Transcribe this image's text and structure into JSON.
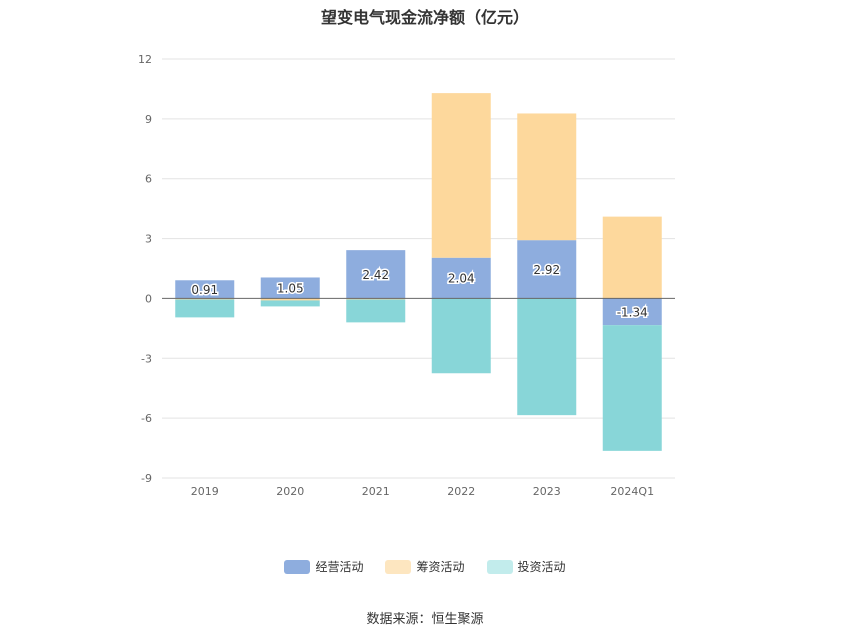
{
  "chart_data": {
    "type": "bar",
    "stacked": true,
    "title": "望变电气现金流净额（亿元）",
    "categories": [
      "2019",
      "2020",
      "2021",
      "2022",
      "2023",
      "2024Q1"
    ],
    "ylim": [
      -9,
      12
    ],
    "yticks": [
      12,
      9,
      6,
      3,
      0,
      -3,
      -6,
      -9
    ],
    "grid": true,
    "legend_position": "bottom",
    "series": [
      {
        "name": "经营活动",
        "color": "#8eadde",
        "values": [
          0.91,
          1.05,
          2.42,
          2.04,
          2.92,
          -1.34
        ],
        "labeled": true
      },
      {
        "name": "筹资活动",
        "color": "#fdd89c",
        "values": [
          -0.05,
          -0.1,
          -0.05,
          8.25,
          6.35,
          4.1
        ],
        "labeled": false
      },
      {
        "name": "投资活动",
        "color": "#88d6d8",
        "values": [
          -0.9,
          -0.3,
          -1.15,
          -3.75,
          -5.85,
          -6.3
        ],
        "labeled": false
      }
    ]
  },
  "legend": [
    {
      "name": "经营活动",
      "color": "#8eadde"
    },
    {
      "name": "筹资活动",
      "color": "#fde6c0"
    },
    {
      "name": "投资活动",
      "color": "#c2ecec"
    }
  ],
  "source": "数据来源：恒生聚源"
}
